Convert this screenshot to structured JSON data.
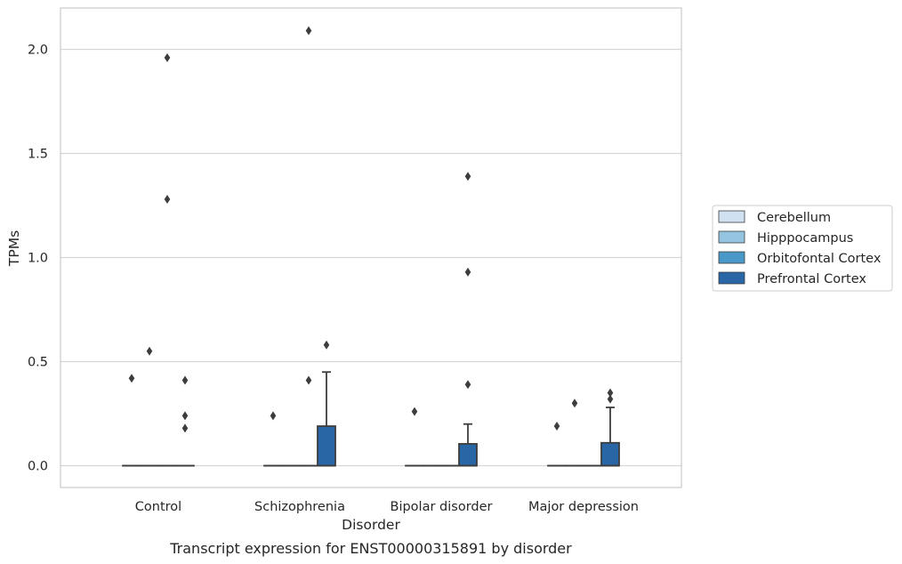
{
  "chart_data": {
    "type": "box",
    "xlabel": "Disorder",
    "ylabel": "TPMs",
    "caption": "Transcript expression for ENST00000315891 by disorder",
    "ylim": [
      -0.1,
      2.2
    ],
    "yticks": [
      "0.0",
      "0.5",
      "1.0",
      "1.5",
      "2.0"
    ],
    "grid": "horizontal",
    "legend_position": "right",
    "categories": [
      "Control",
      "Schizophrenia",
      "Bipolar disorder",
      "Major depression"
    ],
    "series": [
      {
        "name": "Cerebellum",
        "color": "#d0e1f2"
      },
      {
        "name": "Hipppocampus",
        "color": "#94c4df"
      },
      {
        "name": "Orbitofontal Cortex",
        "color": "#4a98c9"
      },
      {
        "name": "Prefrontal Cortex",
        "color": "#2866a6"
      }
    ],
    "boxes": [
      {
        "category": "Control",
        "series": "Cerebellum",
        "q1": 0,
        "median": 0,
        "q3": 0,
        "whisker_low": 0,
        "whisker_high": 0,
        "outliers": [
          0.42
        ]
      },
      {
        "category": "Control",
        "series": "Hipppocampus",
        "q1": 0,
        "median": 0,
        "q3": 0,
        "whisker_low": 0,
        "whisker_high": 0,
        "outliers": [
          0.55
        ]
      },
      {
        "category": "Control",
        "series": "Orbitofontal Cortex",
        "q1": 0,
        "median": 0,
        "q3": 0,
        "whisker_low": 0,
        "whisker_high": 0,
        "outliers": [
          1.96,
          1.28
        ]
      },
      {
        "category": "Control",
        "series": "Prefrontal Cortex",
        "q1": 0,
        "median": 0,
        "q3": 0,
        "whisker_low": 0,
        "whisker_high": 0,
        "outliers": [
          0.41,
          0.24,
          0.18
        ]
      },
      {
        "category": "Schizophrenia",
        "series": "Cerebellum",
        "q1": 0,
        "median": 0,
        "q3": 0,
        "whisker_low": 0,
        "whisker_high": 0,
        "outliers": [
          0.24
        ]
      },
      {
        "category": "Schizophrenia",
        "series": "Hipppocampus",
        "q1": 0,
        "median": 0,
        "q3": 0,
        "whisker_low": 0,
        "whisker_high": 0,
        "outliers": []
      },
      {
        "category": "Schizophrenia",
        "series": "Orbitofontal Cortex",
        "q1": 0,
        "median": 0,
        "q3": 0,
        "whisker_low": 0,
        "whisker_high": 0,
        "outliers": [
          2.09,
          0.41
        ]
      },
      {
        "category": "Schizophrenia",
        "series": "Prefrontal Cortex",
        "q1": 0,
        "median": 0,
        "q3": 0.19,
        "whisker_low": 0,
        "whisker_high": 0.45,
        "outliers": [
          0.58
        ]
      },
      {
        "category": "Bipolar disorder",
        "series": "Cerebellum",
        "q1": 0,
        "median": 0,
        "q3": 0,
        "whisker_low": 0,
        "whisker_high": 0,
        "outliers": [
          0.26
        ]
      },
      {
        "category": "Bipolar disorder",
        "series": "Hipppocampus",
        "q1": 0,
        "median": 0,
        "q3": 0,
        "whisker_low": 0,
        "whisker_high": 0,
        "outliers": []
      },
      {
        "category": "Bipolar disorder",
        "series": "Orbitofontal Cortex",
        "q1": 0,
        "median": 0,
        "q3": 0,
        "whisker_low": 0,
        "whisker_high": 0,
        "outliers": []
      },
      {
        "category": "Bipolar disorder",
        "series": "Prefrontal Cortex",
        "q1": 0,
        "median": 0,
        "q3": 0.105,
        "whisker_low": 0,
        "whisker_high": 0.2,
        "outliers": [
          1.39,
          0.93,
          0.39
        ]
      },
      {
        "category": "Major depression",
        "series": "Cerebellum",
        "q1": 0,
        "median": 0,
        "q3": 0,
        "whisker_low": 0,
        "whisker_high": 0,
        "outliers": [
          0.19
        ]
      },
      {
        "category": "Major depression",
        "series": "Hipppocampus",
        "q1": 0,
        "median": 0,
        "q3": 0,
        "whisker_low": 0,
        "whisker_high": 0,
        "outliers": [
          0.3
        ]
      },
      {
        "category": "Major depression",
        "series": "Orbitofontal Cortex",
        "q1": 0,
        "median": 0,
        "q3": 0,
        "whisker_low": 0,
        "whisker_high": 0,
        "outliers": []
      },
      {
        "category": "Major depression",
        "series": "Prefrontal Cortex",
        "q1": 0,
        "median": 0,
        "q3": 0.11,
        "whisker_low": 0,
        "whisker_high": 0.28,
        "outliers": [
          0.35,
          0.32
        ]
      }
    ]
  }
}
